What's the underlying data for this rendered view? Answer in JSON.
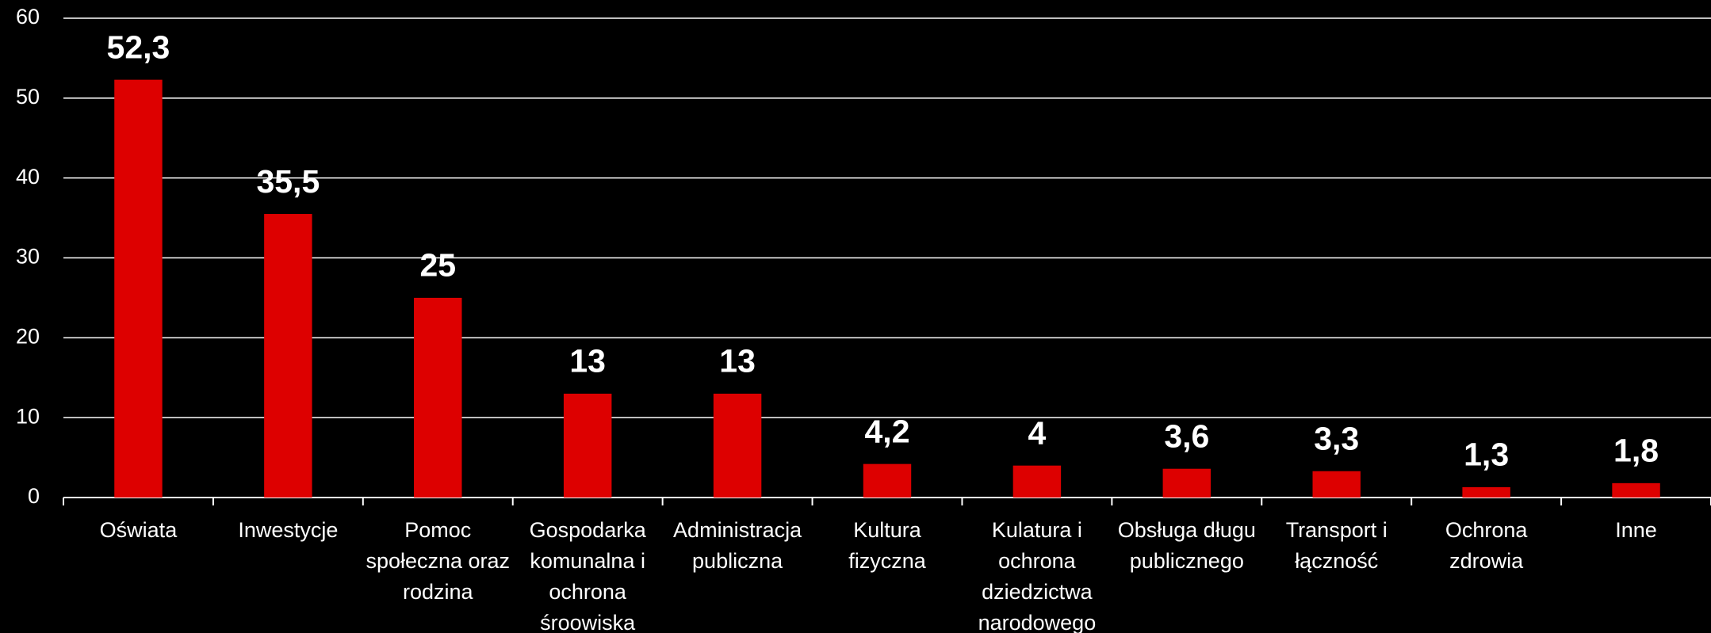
{
  "chart_data": {
    "type": "bar",
    "categories": [
      "Oświata",
      "Inwestycje",
      "Pomoc społeczna oraz rodzina",
      "Gospodarka komunalna i ochrona śroowiska",
      "Administracja publiczna",
      "Kultura fizyczna",
      "Kulatura i ochrona dziedzictwa narodowego",
      "Obsługa długu publicznego",
      "Transport i łączność",
      "Ochrona zdrowia",
      "Inne"
    ],
    "values": [
      52.3,
      35.5,
      25,
      13,
      13,
      4.2,
      4,
      3.6,
      3.3,
      1.3,
      1.8
    ],
    "value_labels": [
      "52,3",
      "35,5",
      "25",
      "13",
      "13",
      "4,2",
      "4",
      "3,6",
      "3,3",
      "1,3",
      "1,8"
    ],
    "color": "#dd0000",
    "ylim": [
      0,
      60
    ],
    "yticks": [
      0,
      10,
      20,
      30,
      40,
      50,
      60
    ],
    "grid": true
  }
}
